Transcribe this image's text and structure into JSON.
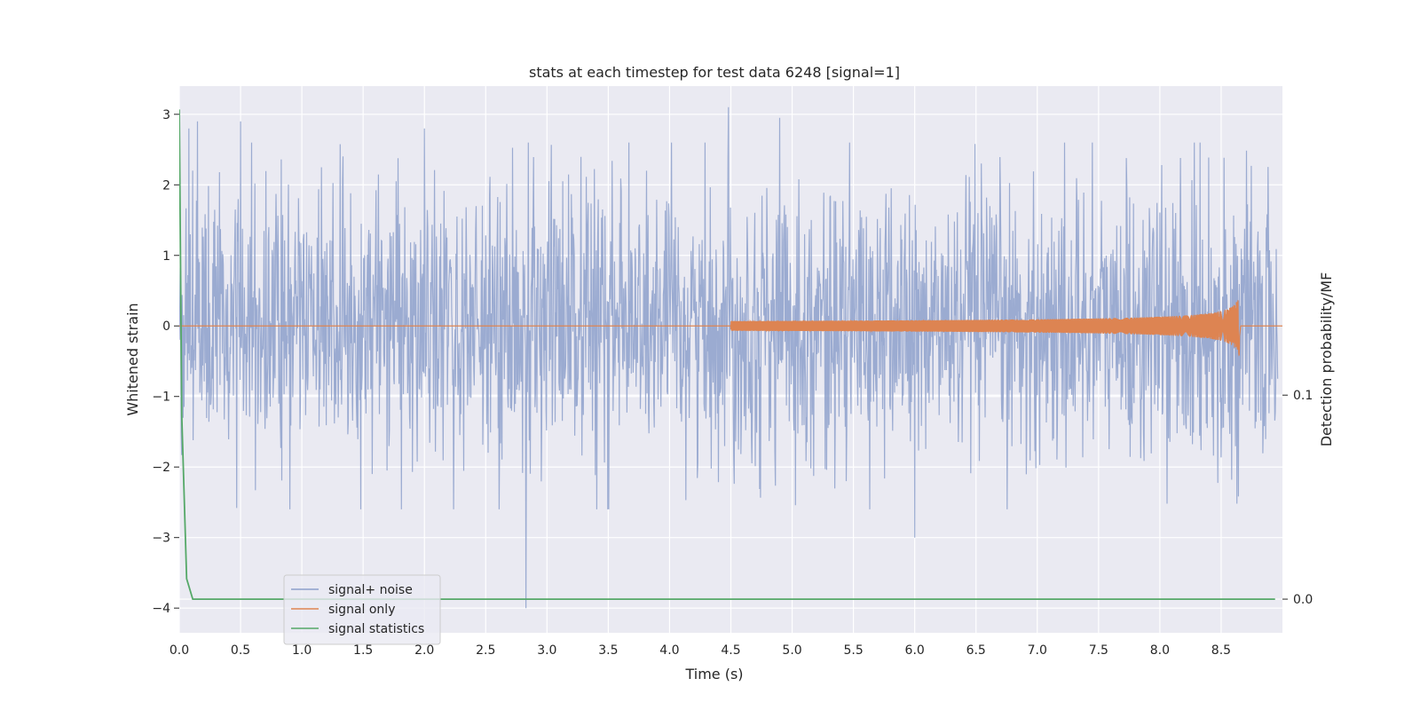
{
  "chart_data": {
    "type": "line",
    "title": "stats at each timestep for test data 6248 [signal=1]",
    "xlabel": "Time (s)",
    "ylabel": "Whitened strain",
    "y2label": "Detection probability/MF",
    "xlim": [
      0.0,
      9.0
    ],
    "ylim": [
      -4.35,
      3.4
    ],
    "y2lim": [
      -0.0165,
      0.2515
    ],
    "x_ticks": [
      "0.0",
      "0.5",
      "1.0",
      "1.5",
      "2.0",
      "2.5",
      "3.0",
      "3.5",
      "4.0",
      "4.5",
      "5.0",
      "5.5",
      "6.0",
      "6.5",
      "7.0",
      "7.5",
      "8.0",
      "8.5"
    ],
    "y_ticks": [
      "3",
      "2",
      "1",
      "0",
      "−1",
      "−2",
      "−3",
      "−4"
    ],
    "y_tick_values": [
      3,
      2,
      1,
      0,
      -1,
      -2,
      -3,
      -4
    ],
    "y2_ticks": [
      "0.1",
      "0.0"
    ],
    "y2_tick_values": [
      0.1,
      0.0
    ],
    "grid": true,
    "legend_position": "lower-left",
    "colors": {
      "plot_bg": "#eaeaf2",
      "grid": "#ffffff",
      "noise": "#8da0cb",
      "signal": "#dd8452",
      "stats": "#55a868"
    },
    "series": [
      {
        "name": "signal+ noise",
        "axis": "left",
        "description_type": "noise",
        "sample_rate": 256,
        "envelope": {
          "peaks_x": [
            0.08,
            0.15,
            0.5,
            2.0,
            2.83,
            4.48,
            4.9,
            6.0,
            7.45
          ],
          "peaks_y": [
            2.8,
            2.9,
            2.9,
            2.8,
            -4.0,
            3.1,
            2.95,
            -3.0,
            2.6
          ]
        },
        "typical_range": [
          -2.5,
          2.5
        ]
      },
      {
        "name": "signal only",
        "axis": "left",
        "description_type": "chirp",
        "start": 4.5,
        "merger": 8.65,
        "peak_amplitude": 0.45
      },
      {
        "name": "signal statistics",
        "axis": "right",
        "x": [
          0.0,
          0.02,
          0.06,
          0.11,
          0.5,
          1.0,
          2.0,
          3.0,
          4.0,
          5.0,
          6.0,
          7.0,
          8.0,
          8.94
        ],
        "y": [
          0.24,
          0.09,
          0.01,
          0.0,
          0.0,
          0.0,
          0.0,
          0.0,
          0.0,
          0.0,
          0.0,
          0.0,
          0.0,
          0.0
        ]
      }
    ]
  }
}
